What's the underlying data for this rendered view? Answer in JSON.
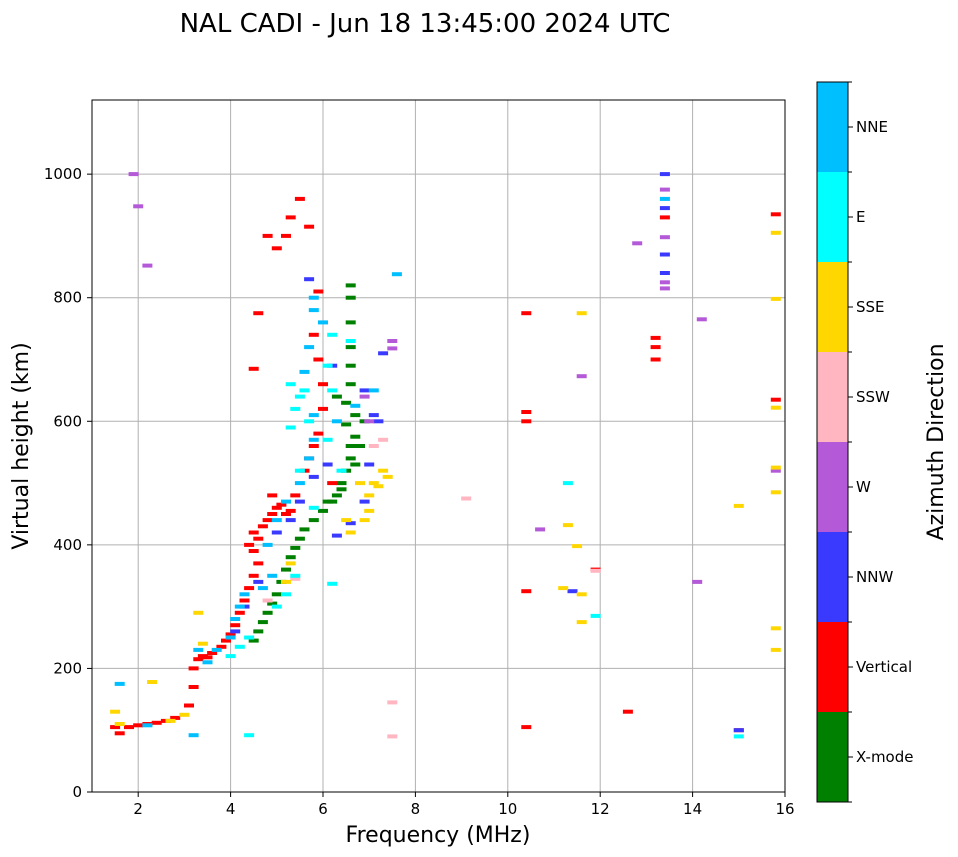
{
  "chart_data": {
    "type": "scatter",
    "title": "NAL CADI - Jun 18 13:45:00 2024 UTC",
    "xlabel": "Frequency (MHz)",
    "ylabel": "Virtual height (km)",
    "xlim": [
      1,
      16
    ],
    "ylim": [
      0,
      1120
    ],
    "xticks": [
      2,
      4,
      6,
      8,
      10,
      12,
      14,
      16
    ],
    "yticks": [
      0,
      200,
      400,
      600,
      800,
      1000
    ],
    "grid": true,
    "colorbar": {
      "label": "Azimuth Direction",
      "categories": [
        {
          "name": "X-mode",
          "color": "#008000"
        },
        {
          "name": "Vertical",
          "color": "#ff0000"
        },
        {
          "name": "NNW",
          "color": "#3a3aff"
        },
        {
          "name": "W",
          "color": "#b45ad8"
        },
        {
          "name": "SSW",
          "color": "#ffb6c1"
        },
        {
          "name": "SSE",
          "color": "#ffd700"
        },
        {
          "name": "E",
          "color": "#00ffff"
        },
        {
          "name": "NNE",
          "color": "#00bfff"
        }
      ]
    },
    "series": [
      {
        "name": "X-mode",
        "color": "#008000",
        "points": [
          [
            4.5,
            245
          ],
          [
            4.6,
            260
          ],
          [
            4.7,
            275
          ],
          [
            4.8,
            290
          ],
          [
            4.9,
            305
          ],
          [
            5.0,
            320
          ],
          [
            5.1,
            340
          ],
          [
            5.2,
            360
          ],
          [
            5.3,
            380
          ],
          [
            5.4,
            395
          ],
          [
            5.5,
            410
          ],
          [
            5.6,
            425
          ],
          [
            5.8,
            440
          ],
          [
            6.0,
            455
          ],
          [
            6.1,
            470
          ],
          [
            6.3,
            480
          ],
          [
            6.4,
            500
          ],
          [
            6.5,
            520
          ],
          [
            6.6,
            540
          ],
          [
            6.6,
            560
          ],
          [
            6.7,
            575
          ],
          [
            6.5,
            595
          ],
          [
            6.7,
            610
          ],
          [
            6.5,
            630
          ],
          [
            6.6,
            660
          ],
          [
            6.6,
            690
          ],
          [
            6.6,
            720
          ],
          [
            6.6,
            760
          ],
          [
            6.6,
            800
          ],
          [
            6.6,
            820
          ],
          [
            6.2,
            470
          ],
          [
            6.4,
            490
          ],
          [
            6.8,
            560
          ],
          [
            6.7,
            530
          ],
          [
            6.9,
            600
          ],
          [
            6.3,
            640
          ]
        ]
      },
      {
        "name": "Vertical",
        "color": "#ff0000",
        "points": [
          [
            1.5,
            105
          ],
          [
            1.6,
            95
          ],
          [
            1.8,
            105
          ],
          [
            2.0,
            108
          ],
          [
            2.2,
            110
          ],
          [
            2.4,
            112
          ],
          [
            2.6,
            115
          ],
          [
            2.8,
            120
          ],
          [
            3.1,
            140
          ],
          [
            3.2,
            170
          ],
          [
            3.2,
            200
          ],
          [
            3.3,
            215
          ],
          [
            3.4,
            220
          ],
          [
            3.5,
            218
          ],
          [
            3.6,
            225
          ],
          [
            3.8,
            235
          ],
          [
            3.9,
            245
          ],
          [
            4.0,
            255
          ],
          [
            4.1,
            270
          ],
          [
            4.2,
            290
          ],
          [
            4.3,
            310
          ],
          [
            4.4,
            330
          ],
          [
            4.5,
            350
          ],
          [
            4.6,
            370
          ],
          [
            4.5,
            390
          ],
          [
            4.6,
            410
          ],
          [
            4.7,
            430
          ],
          [
            4.8,
            440
          ],
          [
            4.9,
            450
          ],
          [
            5.0,
            460
          ],
          [
            5.2,
            450
          ],
          [
            5.4,
            480
          ],
          [
            5.6,
            520
          ],
          [
            5.7,
            540
          ],
          [
            5.8,
            560
          ],
          [
            5.9,
            580
          ],
          [
            6.0,
            620
          ],
          [
            6.0,
            660
          ],
          [
            5.9,
            700
          ],
          [
            5.8,
            740
          ],
          [
            5.9,
            810
          ],
          [
            5.5,
            960
          ],
          [
            5.3,
            930
          ],
          [
            5.2,
            900
          ],
          [
            4.8,
            900
          ],
          [
            5.0,
            880
          ],
          [
            5.7,
            915
          ],
          [
            4.6,
            775
          ],
          [
            4.5,
            685
          ],
          [
            4.9,
            480
          ],
          [
            5.1,
            465
          ],
          [
            4.4,
            400
          ],
          [
            4.5,
            420
          ],
          [
            5.3,
            455
          ],
          [
            6.2,
            500
          ],
          [
            10.4,
            105
          ],
          [
            10.4,
            325
          ],
          [
            10.4,
            600
          ],
          [
            10.4,
            615
          ],
          [
            10.4,
            775
          ],
          [
            11.9,
            360
          ],
          [
            12.6,
            130
          ],
          [
            13.2,
            700
          ],
          [
            13.2,
            720
          ],
          [
            13.2,
            735
          ],
          [
            13.4,
            930
          ],
          [
            15.0,
            100
          ],
          [
            15.8,
            635
          ],
          [
            15.8,
            935
          ]
        ]
      },
      {
        "name": "NNW",
        "color": "#3a3aff",
        "points": [
          [
            4.1,
            260
          ],
          [
            4.3,
            300
          ],
          [
            4.6,
            340
          ],
          [
            5.0,
            420
          ],
          [
            5.3,
            440
          ],
          [
            5.5,
            470
          ],
          [
            5.8,
            510
          ],
          [
            6.1,
            530
          ],
          [
            6.3,
            415
          ],
          [
            6.6,
            435
          ],
          [
            6.9,
            470
          ],
          [
            7.0,
            530
          ],
          [
            7.2,
            600
          ],
          [
            7.1,
            610
          ],
          [
            6.9,
            650
          ],
          [
            7.3,
            710
          ],
          [
            6.2,
            690
          ],
          [
            5.7,
            830
          ],
          [
            11.4,
            325
          ],
          [
            13.4,
            840
          ],
          [
            13.4,
            870
          ],
          [
            13.4,
            945
          ],
          [
            13.4,
            1000
          ],
          [
            15.0,
            100
          ]
        ]
      },
      {
        "name": "W",
        "color": "#b45ad8",
        "points": [
          [
            1.9,
            1000
          ],
          [
            2.0,
            948
          ],
          [
            2.2,
            852
          ],
          [
            6.9,
            640
          ],
          [
            7.0,
            600
          ],
          [
            7.5,
            730
          ],
          [
            7.5,
            718
          ],
          [
            10.7,
            425
          ],
          [
            11.6,
            673
          ],
          [
            12.8,
            888
          ],
          [
            13.4,
            815
          ],
          [
            13.4,
            825
          ],
          [
            13.4,
            898
          ],
          [
            13.4,
            975
          ],
          [
            14.1,
            340
          ],
          [
            14.2,
            765
          ],
          [
            15.8,
            520
          ]
        ]
      },
      {
        "name": "SSW",
        "color": "#ffb6c1",
        "points": [
          [
            4.8,
            310
          ],
          [
            5.4,
            345
          ],
          [
            7.1,
            560
          ],
          [
            7.3,
            570
          ],
          [
            7.5,
            145
          ],
          [
            7.5,
            90
          ],
          [
            9.1,
            475
          ],
          [
            11.9,
            358
          ]
        ]
      },
      {
        "name": "SSE",
        "color": "#ffd700",
        "points": [
          [
            1.5,
            130
          ],
          [
            1.6,
            110
          ],
          [
            2.3,
            178
          ],
          [
            2.7,
            115
          ],
          [
            3.0,
            125
          ],
          [
            3.3,
            290
          ],
          [
            3.4,
            240
          ],
          [
            5.2,
            340
          ],
          [
            5.3,
            370
          ],
          [
            6.5,
            440
          ],
          [
            6.6,
            420
          ],
          [
            6.9,
            440
          ],
          [
            7.0,
            480
          ],
          [
            7.1,
            500
          ],
          [
            7.2,
            495
          ],
          [
            7.3,
            520
          ],
          [
            7.4,
            510
          ],
          [
            7.0,
            455
          ],
          [
            6.8,
            500
          ],
          [
            11.2,
            330
          ],
          [
            11.3,
            432
          ],
          [
            11.5,
            398
          ],
          [
            11.6,
            320
          ],
          [
            11.6,
            275
          ],
          [
            11.6,
            775
          ],
          [
            15.0,
            463
          ],
          [
            15.8,
            230
          ],
          [
            15.8,
            265
          ],
          [
            15.8,
            485
          ],
          [
            15.8,
            525
          ],
          [
            15.8,
            622
          ],
          [
            15.8,
            798
          ],
          [
            15.8,
            905
          ]
        ]
      },
      {
        "name": "E",
        "color": "#00ffff",
        "points": [
          [
            4.0,
            220
          ],
          [
            4.2,
            235
          ],
          [
            4.4,
            250
          ],
          [
            5.0,
            300
          ],
          [
            5.2,
            320
          ],
          [
            5.4,
            350
          ],
          [
            5.5,
            520
          ],
          [
            5.3,
            590
          ],
          [
            5.4,
            620
          ],
          [
            5.5,
            640
          ],
          [
            5.6,
            650
          ],
          [
            5.3,
            660
          ],
          [
            5.7,
            600
          ],
          [
            6.2,
            740
          ],
          [
            6.1,
            690
          ],
          [
            6.2,
            650
          ],
          [
            6.6,
            730
          ],
          [
            6.1,
            570
          ],
          [
            5.8,
            460
          ],
          [
            6.4,
            520
          ],
          [
            4.4,
            92
          ],
          [
            6.2,
            337
          ],
          [
            11.3,
            500
          ],
          [
            11.9,
            285
          ],
          [
            15.0,
            90
          ]
        ]
      },
      {
        "name": "NNE",
        "color": "#00bfff",
        "points": [
          [
            1.6,
            175
          ],
          [
            2.2,
            108
          ],
          [
            3.2,
            92
          ],
          [
            3.3,
            230
          ],
          [
            3.5,
            210
          ],
          [
            3.7,
            230
          ],
          [
            4.0,
            250
          ],
          [
            4.1,
            280
          ],
          [
            4.2,
            300
          ],
          [
            4.3,
            320
          ],
          [
            4.7,
            330
          ],
          [
            4.8,
            400
          ],
          [
            4.9,
            350
          ],
          [
            5.0,
            440
          ],
          [
            5.2,
            470
          ],
          [
            5.5,
            500
          ],
          [
            5.7,
            540
          ],
          [
            5.8,
            570
          ],
          [
            5.8,
            610
          ],
          [
            5.6,
            680
          ],
          [
            5.7,
            720
          ],
          [
            5.8,
            780
          ],
          [
            5.8,
            800
          ],
          [
            6.0,
            760
          ],
          [
            6.3,
            600
          ],
          [
            6.7,
            625
          ],
          [
            7.1,
            650
          ],
          [
            7.6,
            838
          ],
          [
            13.4,
            960
          ]
        ]
      }
    ]
  }
}
